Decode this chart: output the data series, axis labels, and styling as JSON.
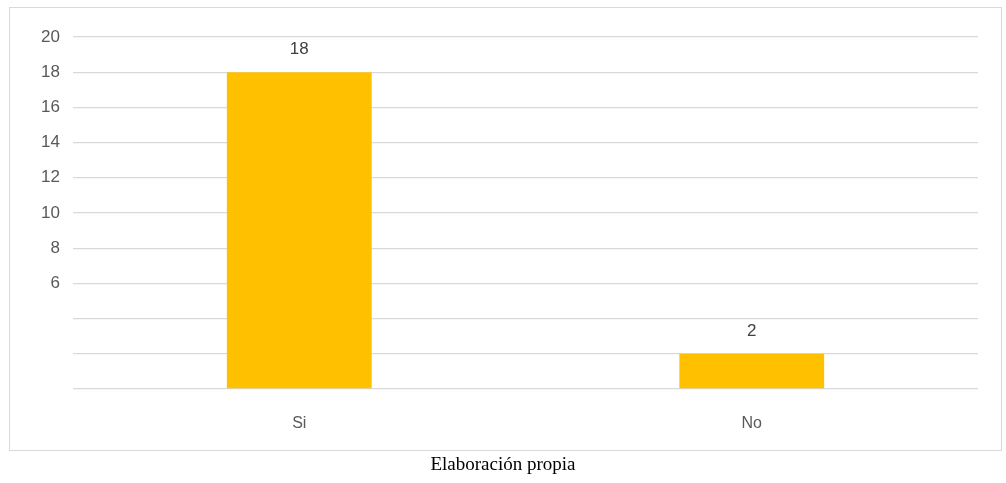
{
  "chart_data": {
    "type": "bar",
    "categories": [
      "Si",
      "No"
    ],
    "values": [
      18,
      2
    ],
    "color": "#ffc000",
    "ylim": [
      0,
      20
    ],
    "yticks": [
      {
        "value": 0,
        "label": null
      },
      {
        "value": 2,
        "label": null
      },
      {
        "value": 4,
        "label": null
      },
      6,
      8,
      10,
      12,
      14,
      16,
      18,
      20
    ],
    "grid": "y",
    "data_labels": true,
    "annotations": [
      "Elaboración propia"
    ]
  }
}
